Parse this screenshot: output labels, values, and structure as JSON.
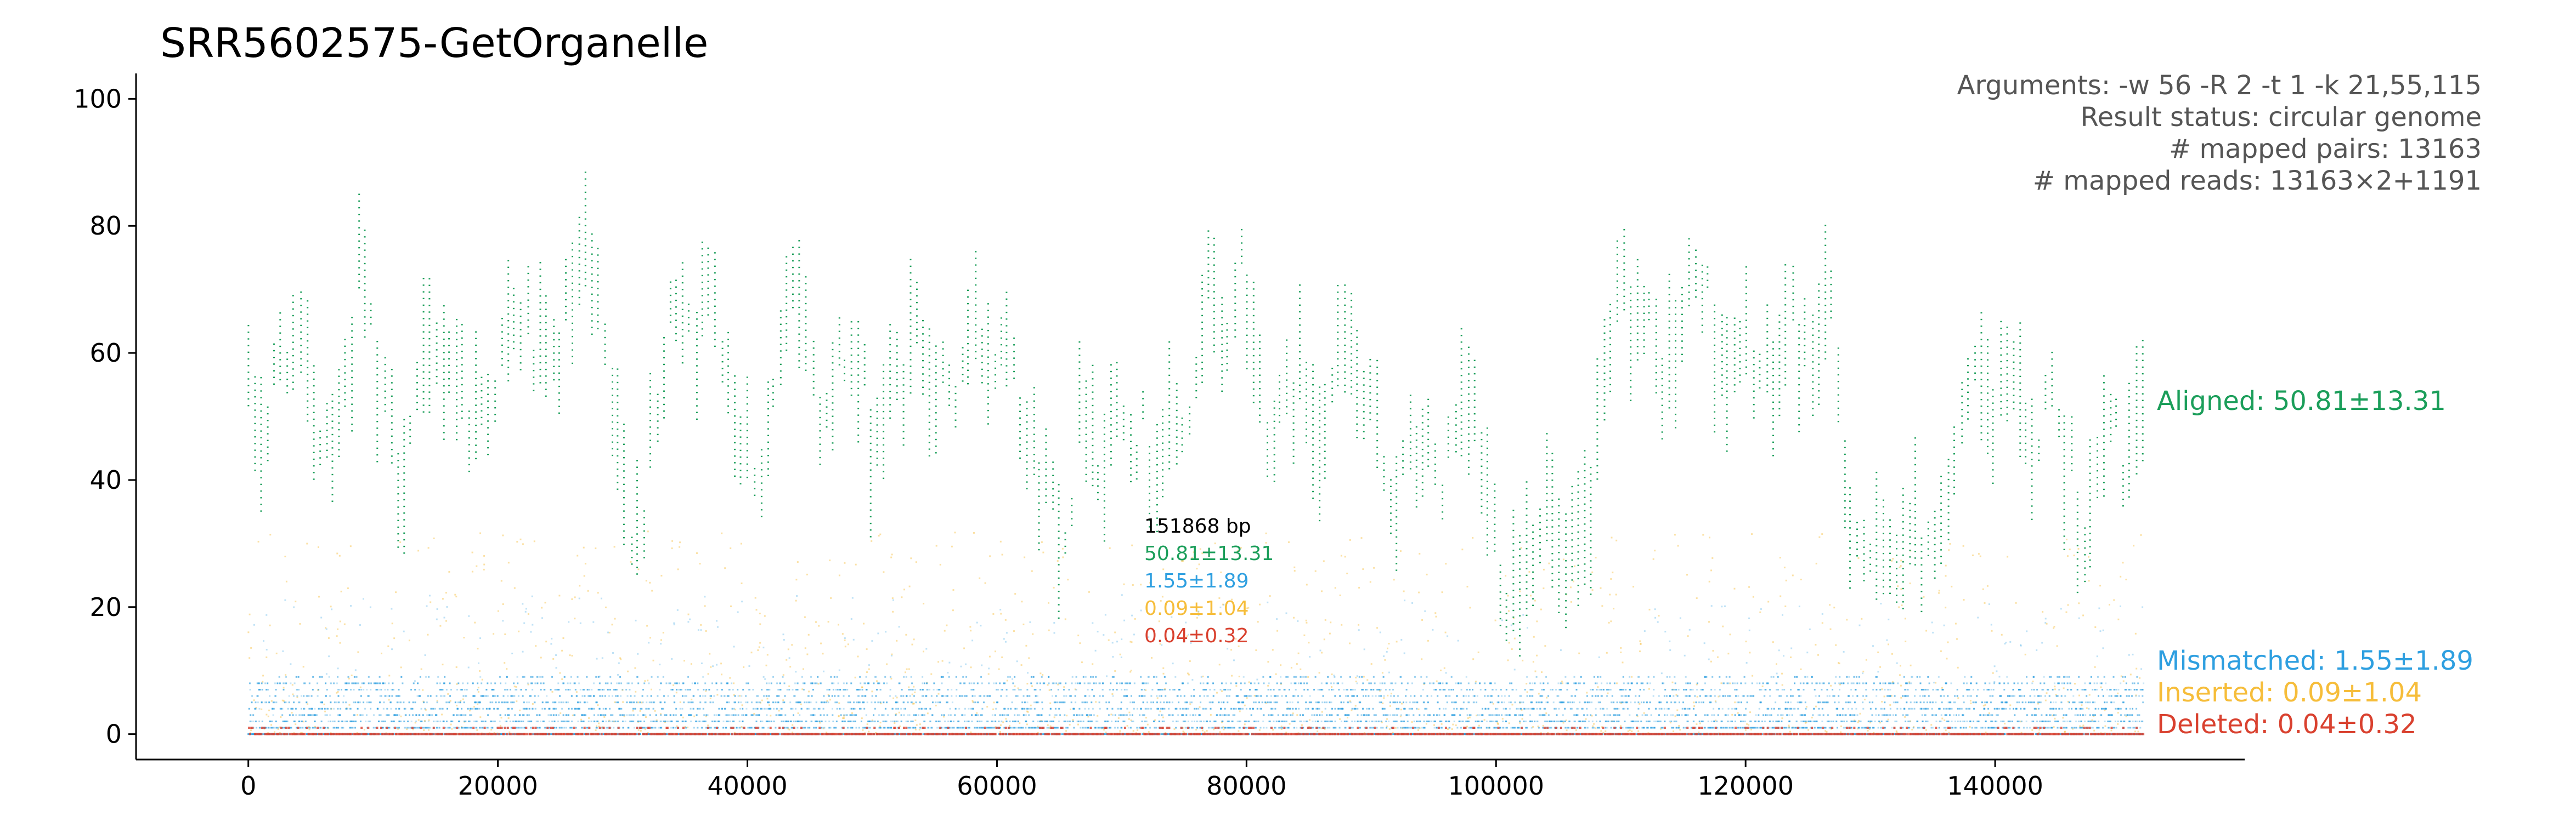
{
  "chart_data": {
    "type": "scatter",
    "title": "SRR5602575-GetOrganelle",
    "xlabel": "",
    "ylabel": "",
    "xlim": [
      -9000,
      160000
    ],
    "ylim": [
      -4,
      104
    ],
    "x_ticks": [
      0,
      20000,
      40000,
      60000,
      80000,
      100000,
      120000,
      140000
    ],
    "y_ticks": [
      0,
      20,
      40,
      60,
      80,
      100
    ],
    "x_tick_labels": [
      "0",
      "20000",
      "40000",
      "60000",
      "80000",
      "100000",
      "120000",
      "140000"
    ],
    "y_tick_labels": [
      "0",
      "20",
      "40",
      "60",
      "80",
      "100"
    ],
    "genome_length_bp": 151868,
    "spines": "left-bottom",
    "info_lines": [
      "Arguments: -w 56 -R 2 -t 1 -k 21,55,115",
      "Result status: circular genome",
      "# mapped pairs: 13163",
      "# mapped reads: 13163×2+1191"
    ],
    "center_labels": {
      "length": "151868 bp",
      "aligned": "50.81±13.31",
      "mismatched": "1.55±1.89",
      "inserted": "0.09±1.04",
      "deleted": "0.04±0.32"
    },
    "series": [
      {
        "name": "Aligned",
        "label": "Aligned: 50.81±13.31",
        "mean": 50.81,
        "sd": 13.31,
        "color": "#1b9e5a",
        "profile": [
          [
            0,
            52
          ],
          [
            1500,
            48
          ],
          [
            3000,
            64
          ],
          [
            4500,
            55
          ],
          [
            6000,
            48
          ],
          [
            8000,
            56
          ],
          [
            9000,
            75
          ],
          [
            10500,
            52
          ],
          [
            12000,
            42
          ],
          [
            14000,
            55
          ],
          [
            16000,
            62
          ],
          [
            18000,
            50
          ],
          [
            20000,
            58
          ],
          [
            22000,
            66
          ],
          [
            24000,
            55
          ],
          [
            26000,
            68
          ],
          [
            27000,
            75
          ],
          [
            28500,
            60
          ],
          [
            30000,
            38
          ],
          [
            31500,
            34
          ],
          [
            33000,
            52
          ],
          [
            34500,
            74
          ],
          [
            36000,
            63
          ],
          [
            37500,
            72
          ],
          [
            39000,
            52
          ],
          [
            41000,
            42
          ],
          [
            43000,
            62
          ],
          [
            44000,
            72
          ],
          [
            46000,
            50
          ],
          [
            48000,
            62
          ],
          [
            50000,
            47
          ],
          [
            52000,
            55
          ],
          [
            54000,
            65
          ],
          [
            56000,
            50
          ],
          [
            58000,
            64
          ],
          [
            60000,
            60
          ],
          [
            61000,
            70
          ],
          [
            62500,
            45
          ],
          [
            64000,
            40
          ],
          [
            65500,
            33
          ],
          [
            67000,
            55
          ],
          [
            68500,
            42
          ],
          [
            70000,
            57
          ],
          [
            72000,
            44
          ],
          [
            74000,
            47
          ],
          [
            76000,
            52
          ],
          [
            77000,
            72
          ],
          [
            78000,
            58
          ],
          [
            79500,
            76
          ],
          [
            81000,
            56
          ],
          [
            82500,
            46
          ],
          [
            84000,
            57
          ],
          [
            86000,
            50
          ],
          [
            88000,
            62
          ],
          [
            90000,
            48
          ],
          [
            92000,
            38
          ],
          [
            94000,
            46
          ],
          [
            96000,
            40
          ],
          [
            98000,
            52
          ],
          [
            99500,
            35
          ],
          [
            101000,
            24
          ],
          [
            102500,
            30
          ],
          [
            104000,
            37
          ],
          [
            105500,
            22
          ],
          [
            107000,
            30
          ],
          [
            108500,
            48
          ],
          [
            110000,
            70
          ],
          [
            111500,
            66
          ],
          [
            113000,
            58
          ],
          [
            114500,
            60
          ],
          [
            116000,
            74
          ],
          [
            117500,
            64
          ],
          [
            119000,
            56
          ],
          [
            120500,
            62
          ],
          [
            122000,
            52
          ],
          [
            123500,
            67
          ],
          [
            125000,
            58
          ],
          [
            126500,
            70
          ],
          [
            128000,
            40
          ],
          [
            129500,
            30
          ],
          [
            131000,
            24
          ],
          [
            132500,
            34
          ],
          [
            134000,
            30
          ],
          [
            135500,
            36
          ],
          [
            137000,
            42
          ],
          [
            138500,
            56
          ],
          [
            140000,
            48
          ],
          [
            141500,
            60
          ],
          [
            143000,
            46
          ],
          [
            144500,
            54
          ],
          [
            146000,
            42
          ],
          [
            147500,
            30
          ],
          [
            149000,
            50
          ],
          [
            150500,
            44
          ],
          [
            151868,
            46
          ]
        ]
      },
      {
        "name": "Mismatched",
        "label": "Mismatched: 1.55±1.89",
        "mean": 1.55,
        "sd": 1.89,
        "color": "#2e9fe0"
      },
      {
        "name": "Inserted",
        "label": "Inserted: 0.09±1.04",
        "mean": 0.09,
        "sd": 1.04,
        "color": "#f6bd3a"
      },
      {
        "name": "Deleted",
        "label": "Deleted: 0.04±0.32",
        "mean": 0.04,
        "sd": 0.32,
        "color": "#d9412f"
      }
    ]
  }
}
